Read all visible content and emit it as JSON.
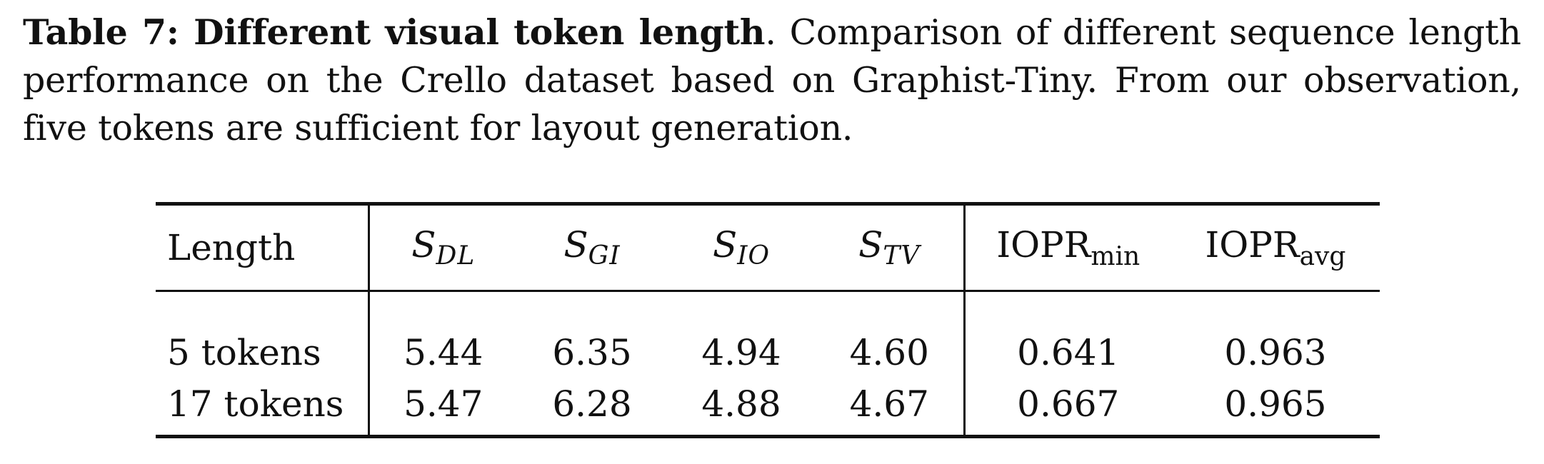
{
  "caption": {
    "label": "Table 7: Different visual token length",
    "text": ". Comparison of different sequence length performance on the Crello dataset based on Graphist-Tiny. From our observation, five tokens are sufficient for layout generation."
  },
  "table": {
    "header": {
      "length": "Length",
      "sdl": {
        "base": "S",
        "sub": "DL"
      },
      "sgi": {
        "base": "S",
        "sub": "GI"
      },
      "sio": {
        "base": "S",
        "sub": "IO"
      },
      "stv": {
        "base": "S",
        "sub": "TV"
      },
      "iopr_min": {
        "base": "IOPR",
        "sub": "min"
      },
      "iopr_avg": {
        "base": "IOPR",
        "sub": "avg"
      }
    },
    "rows": [
      {
        "length": "5 tokens",
        "sdl": "5.44",
        "sgi": "6.35",
        "sio": "4.94",
        "stv": "4.60",
        "iopr_min": "0.641",
        "iopr_avg": "0.963"
      },
      {
        "length": "17 tokens",
        "sdl": "5.47",
        "sgi": "6.28",
        "sio": "4.88",
        "stv": "4.67",
        "iopr_min": "0.667",
        "iopr_avg": "0.965"
      }
    ]
  }
}
